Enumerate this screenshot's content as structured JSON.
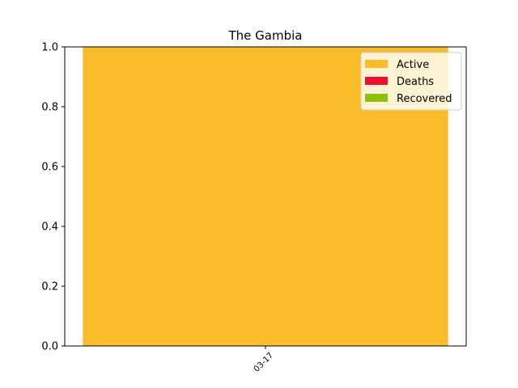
{
  "chart_data": {
    "type": "bar",
    "stacked": true,
    "title": "The Gambia",
    "categories": [
      "03-17"
    ],
    "series": [
      {
        "name": "Active",
        "values": [
          1.0
        ],
        "color": "#f8bd28"
      },
      {
        "name": "Deaths",
        "values": [
          0.0
        ],
        "color": "#f0102d"
      },
      {
        "name": "Recovered",
        "values": [
          0.0
        ],
        "color": "#8dbf0d"
      }
    ],
    "ylim": [
      0,
      1.0
    ],
    "yticks": [
      "0.0",
      "0.2",
      "0.4",
      "0.6",
      "0.8",
      "1.0"
    ],
    "xlabel": "",
    "ylabel": "",
    "legend_position": "top-right",
    "grid": false
  }
}
